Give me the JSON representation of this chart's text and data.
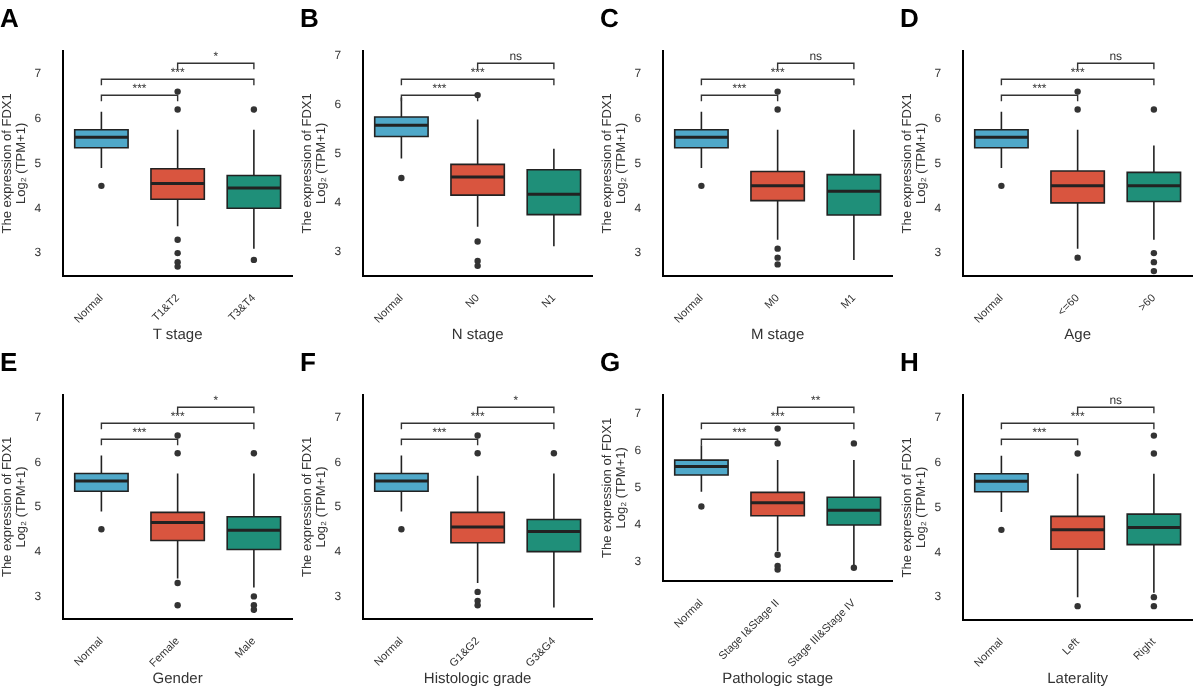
{
  "chart_data": [
    {
      "type": "box",
      "title": "A",
      "xlabel": "T stage",
      "ylabel": "The expression of FDX1\nLog₂ (TPM+1)",
      "categories": [
        "Normal",
        "T1&T2",
        "T3&T4"
      ],
      "colors": [
        "#4fa8c9",
        "#d9553f",
        "#1f8f79"
      ],
      "ylim": [
        2.5,
        7.5
      ],
      "yticks": [
        3,
        4,
        5,
        6,
        7
      ],
      "annotations": [
        "***",
        "***",
        "*"
      ],
      "boxes": [
        {
          "low": 4.9,
          "q1": 5.35,
          "median": 5.58,
          "q3": 5.75,
          "high": 6.15,
          "outliers": [
            4.5
          ]
        },
        {
          "low": 3.6,
          "q1": 4.2,
          "median": 4.55,
          "q3": 4.88,
          "high": 5.75,
          "outliers": [
            6.2,
            6.6,
            3.3,
            3.0,
            2.8,
            2.7
          ]
        },
        {
          "low": 3.1,
          "q1": 4.0,
          "median": 4.45,
          "q3": 4.73,
          "high": 5.75,
          "outliers": [
            6.2,
            2.85
          ]
        }
      ]
    },
    {
      "type": "box",
      "title": "B",
      "xlabel": "N stage",
      "ylabel": "The expression of FDX1\nLog₂ (TPM+1)",
      "categories": [
        "Normal",
        "N0",
        "N1"
      ],
      "colors": [
        "#4fa8c9",
        "#d9553f",
        "#1f8f79"
      ],
      "ylim": [
        2.5,
        7.1
      ],
      "yticks": [
        3,
        4,
        5,
        6,
        7
      ],
      "annotations": [
        "***",
        "***",
        "ns"
      ],
      "boxes": [
        {
          "low": 4.9,
          "q1": 5.35,
          "median": 5.58,
          "q3": 5.75,
          "high": 6.15,
          "outliers": [
            4.5
          ]
        },
        {
          "low": 3.5,
          "q1": 4.15,
          "median": 4.52,
          "q3": 4.78,
          "high": 5.7,
          "outliers": [
            6.2,
            3.2,
            2.8,
            2.7
          ]
        },
        {
          "low": 3.1,
          "q1": 3.75,
          "median": 4.17,
          "q3": 4.67,
          "high": 5.1
        }
      ]
    },
    {
      "type": "box",
      "title": "C",
      "xlabel": "M stage",
      "ylabel": "The expression of FDX1\nLog₂ (TPM+1)",
      "categories": [
        "Normal",
        "M0",
        "M1"
      ],
      "colors": [
        "#4fa8c9",
        "#d9553f",
        "#1f8f79"
      ],
      "ylim": [
        2.5,
        7.5
      ],
      "yticks": [
        3,
        4,
        5,
        6,
        7
      ],
      "annotations": [
        "***",
        "***",
        "ns"
      ],
      "boxes": [
        {
          "low": 4.9,
          "q1": 5.35,
          "median": 5.58,
          "q3": 5.75,
          "high": 6.15,
          "outliers": [
            4.5
          ]
        },
        {
          "low": 3.3,
          "q1": 4.17,
          "median": 4.5,
          "q3": 4.82,
          "high": 5.75,
          "outliers": [
            6.2,
            6.6,
            3.1,
            2.9,
            2.75
          ]
        },
        {
          "low": 2.85,
          "q1": 3.85,
          "median": 4.38,
          "q3": 4.75,
          "high": 5.75
        }
      ]
    },
    {
      "type": "box",
      "title": "D",
      "xlabel": "Age",
      "ylabel": "The expression of FDX1\nLog₂ (TPM+1)",
      "categories": [
        "Normal",
        "<=60",
        ">60"
      ],
      "colors": [
        "#4fa8c9",
        "#d9553f",
        "#1f8f79"
      ],
      "ylim": [
        2.5,
        7.5
      ],
      "yticks": [
        3,
        4,
        5,
        6,
        7
      ],
      "annotations": [
        "***",
        "***",
        "ns"
      ],
      "boxes": [
        {
          "low": 4.9,
          "q1": 5.35,
          "median": 5.58,
          "q3": 5.75,
          "high": 6.15,
          "outliers": [
            4.5
          ]
        },
        {
          "low": 3.1,
          "q1": 4.12,
          "median": 4.5,
          "q3": 4.83,
          "high": 5.75,
          "outliers": [
            6.2,
            6.6,
            2.9
          ]
        },
        {
          "low": 3.3,
          "q1": 4.15,
          "median": 4.5,
          "q3": 4.8,
          "high": 5.4,
          "outliers": [
            6.2,
            3.0,
            2.8,
            2.6
          ]
        }
      ]
    },
    {
      "type": "box",
      "title": "E",
      "xlabel": "Gender",
      "ylabel": "The expression of FDX1\nLog₂ (TPM+1)",
      "categories": [
        "Normal",
        "Female",
        "Male"
      ],
      "colors": [
        "#4fa8c9",
        "#d9553f",
        "#1f8f79"
      ],
      "ylim": [
        2.5,
        7.5
      ],
      "yticks": [
        3,
        4,
        5,
        6,
        7
      ],
      "annotations": [
        "***",
        "***",
        "*"
      ],
      "boxes": [
        {
          "low": 4.9,
          "q1": 5.35,
          "median": 5.58,
          "q3": 5.75,
          "high": 6.15,
          "outliers": [
            4.5
          ]
        },
        {
          "low": 3.4,
          "q1": 4.25,
          "median": 4.65,
          "q3": 4.88,
          "high": 5.75,
          "outliers": [
            6.2,
            6.6,
            3.3,
            2.8
          ]
        },
        {
          "low": 3.2,
          "q1": 4.05,
          "median": 4.48,
          "q3": 4.78,
          "high": 5.75,
          "outliers": [
            6.2,
            3.0,
            2.8,
            2.7
          ]
        }
      ]
    },
    {
      "type": "box",
      "title": "F",
      "xlabel": "Histologic grade",
      "ylabel": "The expression of FDX1\nLog₂ (TPM+1)",
      "categories": [
        "Normal",
        "G1&G2",
        "G3&G4"
      ],
      "colors": [
        "#4fa8c9",
        "#d9553f",
        "#1f8f79"
      ],
      "ylim": [
        2.5,
        7.5
      ],
      "yticks": [
        3,
        4,
        5,
        6,
        7
      ],
      "annotations": [
        "***",
        "***",
        "*"
      ],
      "boxes": [
        {
          "low": 4.9,
          "q1": 5.35,
          "median": 5.58,
          "q3": 5.75,
          "high": 6.15,
          "outliers": [
            4.5
          ]
        },
        {
          "low": 3.3,
          "q1": 4.2,
          "median": 4.55,
          "q3": 4.88,
          "high": 5.7,
          "outliers": [
            6.2,
            6.6,
            3.1,
            2.9,
            2.8
          ]
        },
        {
          "low": 2.75,
          "q1": 4.0,
          "median": 4.45,
          "q3": 4.72,
          "high": 5.75,
          "outliers": [
            6.2
          ]
        }
      ]
    },
    {
      "type": "box",
      "title": "G",
      "xlabel": "Pathologic stage",
      "ylabel": "The expression of FDX1\nLog₂ (TPM+1)",
      "categories": [
        "Normal",
        "Stage I&Stage II",
        "Stage III&Stage IV"
      ],
      "colors": [
        "#4fa8c9",
        "#d9553f",
        "#1f8f79"
      ],
      "ylim": [
        2.5,
        7.5
      ],
      "yticks": [
        3,
        4,
        5,
        6,
        7
      ],
      "annotations": [
        "***",
        "***",
        "**"
      ],
      "boxes": [
        {
          "low": 4.9,
          "q1": 5.35,
          "median": 5.58,
          "q3": 5.75,
          "high": 6.15,
          "outliers": [
            4.5
          ]
        },
        {
          "low": 3.3,
          "q1": 4.25,
          "median": 4.6,
          "q3": 4.88,
          "high": 5.75,
          "outliers": [
            6.2,
            6.6,
            3.2,
            2.9,
            2.8
          ]
        },
        {
          "low": 2.9,
          "q1": 4.0,
          "median": 4.4,
          "q3": 4.75,
          "high": 5.75,
          "outliers": [
            6.2,
            2.85
          ]
        }
      ]
    },
    {
      "type": "box",
      "title": "H",
      "xlabel": "Laterality",
      "ylabel": "The expression of FDX1\nLog₂ (TPM+1)",
      "categories": [
        "Normal",
        "Left",
        "Right"
      ],
      "colors": [
        "#4fa8c9",
        "#d9553f",
        "#1f8f79"
      ],
      "ylim": [
        2.5,
        7.5
      ],
      "yticks": [
        3,
        4,
        5,
        6,
        7
      ],
      "annotations": [
        "***",
        "***",
        "ns"
      ],
      "boxes": [
        {
          "low": 4.9,
          "q1": 5.35,
          "median": 5.58,
          "q3": 5.75,
          "high": 6.15,
          "outliers": [
            4.5
          ]
        },
        {
          "low": 3.0,
          "q1": 4.07,
          "median": 4.5,
          "q3": 4.8,
          "high": 5.75,
          "outliers": [
            6.2,
            2.8
          ]
        },
        {
          "low": 3.1,
          "q1": 4.17,
          "median": 4.55,
          "q3": 4.85,
          "high": 5.75,
          "outliers": [
            6.2,
            6.6,
            3.0,
            2.8
          ]
        }
      ]
    }
  ]
}
